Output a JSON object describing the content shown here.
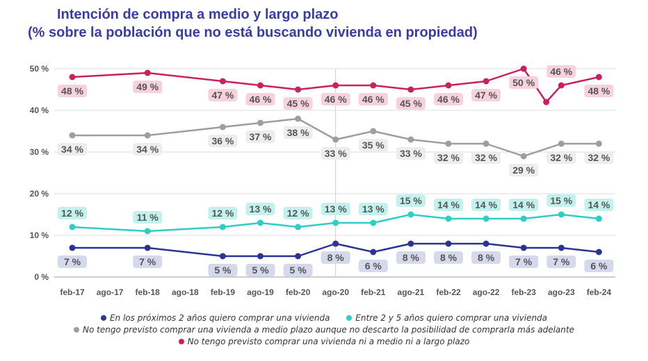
{
  "title": "Intención de compra a medio y largo plazo",
  "subtitle": "(% sobre la población que no está buscando vivienda en propiedad)",
  "chart_data": {
    "type": "line",
    "categories": [
      "feb-17",
      "ago-17",
      "feb-18",
      "ago-18",
      "feb-19",
      "ago-19",
      "feb-20",
      "ago-20",
      "feb-21",
      "ago-21",
      "feb-22",
      "ago-22",
      "feb-23",
      "ago-23",
      "feb-24"
    ],
    "ytick_labels": [
      "0 %",
      "10 %",
      "20 %",
      "30 %",
      "40 %",
      "50 %"
    ],
    "ylim": [
      0,
      50
    ],
    "grid": true,
    "series": [
      {
        "name": "No tengo previsto comprar una vivienda ni a medio ni a largo plazo",
        "color": "#cc1f5e",
        "label_bg": "#f7d2dd",
        "x": [
          0,
          2,
          4,
          5,
          6,
          7,
          8,
          9,
          10,
          11,
          12,
          12.6,
          13,
          14
        ],
        "values": [
          48,
          49,
          47,
          46,
          45,
          46,
          46,
          45,
          46,
          47,
          50,
          42,
          46,
          48
        ],
        "labels": [
          "48 %",
          "49 %",
          "47 %",
          "46 %",
          "45 %",
          "46 %",
          "46 %",
          "45 %",
          "46 %",
          "47 %",
          "50 %",
          "",
          "46 %",
          "48 %"
        ]
      },
      {
        "name": "No tengo previsto comprar una vivienda a medio plazo aunque no descarto la posibilidad de comprarla más adelante",
        "color": "#9e9e9e",
        "label_bg": "#ededed",
        "x": [
          0,
          2,
          4,
          5,
          6,
          7,
          8,
          9,
          10,
          11,
          12,
          13,
          14
        ],
        "values": [
          34,
          34,
          36,
          37,
          38,
          33,
          35,
          33,
          32,
          32,
          29,
          32,
          32
        ],
        "labels": [
          "34 %",
          "34 %",
          "36 %",
          "37 %",
          "38 %",
          "33 %",
          "35 %",
          "33 %",
          "32 %",
          "32 %",
          "29 %",
          "32 %",
          "32 %"
        ]
      },
      {
        "name": "Entre 2 y 5 años quiero comprar una vivienda",
        "color": "#2ecdc6",
        "label_bg": "#c2f1ee",
        "x": [
          0,
          2,
          4,
          5,
          6,
          7,
          8,
          9,
          10,
          11,
          12,
          13,
          14
        ],
        "values": [
          12,
          11,
          12,
          13,
          12,
          13,
          13,
          15,
          14,
          14,
          14,
          15,
          14
        ],
        "labels": [
          "12 %",
          "11 %",
          "12 %",
          "13 %",
          "12 %",
          "13 %",
          "13 %",
          "15 %",
          "14 %",
          "14 %",
          "14 %",
          "15 %",
          "14 %"
        ]
      },
      {
        "name": "En los próximos 2 años quiero comprar una vivienda",
        "color": "#2c3491",
        "label_bg": "#d6d8ec",
        "x": [
          0,
          2,
          4,
          5,
          6,
          7,
          8,
          9,
          10,
          11,
          12,
          13,
          14
        ],
        "values": [
          7,
          7,
          5,
          5,
          5,
          8,
          6,
          8,
          8,
          8,
          7,
          7,
          6
        ],
        "labels": [
          "7 %",
          "7 %",
          "5 %",
          "5 %",
          "5 %",
          "8 %",
          "6 %",
          "8 %",
          "8 %",
          "8 %",
          "7 %",
          "7 %",
          "6 %"
        ]
      }
    ],
    "legend_order": [
      3,
      2,
      1,
      0
    ],
    "legend_position": "bottom"
  }
}
